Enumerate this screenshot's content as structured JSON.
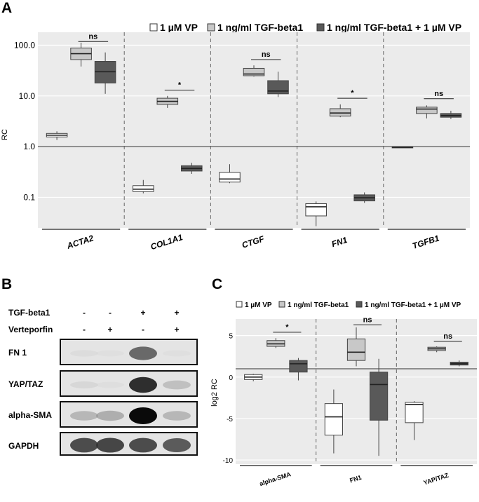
{
  "panel_labels": {
    "a": "A",
    "b": "B",
    "c": "C"
  },
  "colors": {
    "vp": "#ffffff",
    "tgf": "#c8c8c8",
    "combo": "#595959",
    "panel_bg": "#ebebeb",
    "stroke": "#555555"
  },
  "chart_data": [
    {
      "id": "panel_a",
      "type": "box",
      "ylabel": "RC",
      "yscale": "log10",
      "ylim": [
        0.025,
        180
      ],
      "yticks": [
        {
          "value": 0.1,
          "label": "0.1"
        },
        {
          "value": 1,
          "label": "1.0"
        },
        {
          "value": 10,
          "label": "10.0"
        },
        {
          "value": 100,
          "label": "100.0"
        }
      ],
      "reference_line": 1,
      "legend": [
        "1 µM VP",
        "1 ng/ml TGF-beta1",
        "1 ng/ml TGF-beta1 + 1 µM VP"
      ],
      "facets": [
        {
          "label": "ACTA2",
          "boxes": [
            {
              "group": "vp",
              "min": 1.35,
              "q1": 1.55,
              "median": 1.68,
              "q3": 1.82,
              "max": 2.0
            },
            {
              "group": "tgf",
              "min": 38,
              "q1": 52,
              "median": 68,
              "q3": 88,
              "max": 112
            },
            {
              "group": "combo",
              "min": 11,
              "q1": 18,
              "median": 30,
              "q3": 48,
              "max": 72
            }
          ],
          "brackets": [
            {
              "from": 1,
              "to": 2,
              "y": 118,
              "label": "ns"
            }
          ]
        },
        {
          "label": "COL1A1",
          "boxes": [
            {
              "group": "vp",
              "min": 0.12,
              "q1": 0.13,
              "median": 0.145,
              "q3": 0.17,
              "max": 0.22
            },
            {
              "group": "tgf",
              "min": 5.8,
              "q1": 6.8,
              "median": 7.8,
              "q3": 9.0,
              "max": 10.0
            },
            {
              "group": "combo",
              "min": 0.29,
              "q1": 0.33,
              "median": 0.37,
              "q3": 0.42,
              "max": 0.48
            }
          ],
          "brackets": [
            {
              "from": 1,
              "to": 2,
              "y": 13,
              "label": "*"
            }
          ]
        },
        {
          "label": "CTGF",
          "boxes": [
            {
              "group": "vp",
              "min": 0.19,
              "q1": 0.2,
              "median": 0.23,
              "q3": 0.31,
              "max": 0.45
            },
            {
              "group": "tgf",
              "min": 24,
              "q1": 25,
              "median": 27,
              "q3": 35,
              "max": 40
            },
            {
              "group": "combo",
              "min": 9.5,
              "q1": 11,
              "median": 12.5,
              "q3": 20,
              "max": 30
            }
          ],
          "brackets": [
            {
              "from": 1,
              "to": 2,
              "y": 52,
              "label": "ns"
            }
          ]
        },
        {
          "label": "FN1",
          "boxes": [
            {
              "group": "vp",
              "min": 0.027,
              "q1": 0.043,
              "median": 0.065,
              "q3": 0.075,
              "max": 0.083
            },
            {
              "group": "tgf",
              "min": 3.8,
              "q1": 4.0,
              "median": 4.6,
              "q3": 5.6,
              "max": 6.8
            },
            {
              "group": "combo",
              "min": 0.078,
              "q1": 0.085,
              "median": 0.098,
              "q3": 0.112,
              "max": 0.125
            }
          ],
          "brackets": [
            {
              "from": 1,
              "to": 2,
              "y": 9.0,
              "label": "*"
            }
          ]
        },
        {
          "label": "TGFB1",
          "boxes": [
            {
              "group": "vp",
              "min": 0.94,
              "q1": 0.96,
              "median": 0.975,
              "q3": 0.99,
              "max": 1.0
            },
            {
              "group": "tgf",
              "min": 3.6,
              "q1": 4.5,
              "median": 5.5,
              "q3": 6.0,
              "max": 6.5
            },
            {
              "group": "combo",
              "min": 3.5,
              "q1": 3.8,
              "median": 4.1,
              "q3": 4.5,
              "max": 5.1
            }
          ],
          "brackets": [
            {
              "from": 1,
              "to": 2,
              "y": 8.8,
              "label": "ns"
            }
          ]
        }
      ]
    },
    {
      "id": "panel_c",
      "type": "box",
      "ylabel": "log2 RC",
      "yscale": "linear",
      "ylim": [
        -10.5,
        7
      ],
      "yticks": [
        {
          "value": -10,
          "label": "-10"
        },
        {
          "value": -5,
          "label": "-5"
        },
        {
          "value": 0,
          "label": "0"
        },
        {
          "value": 5,
          "label": "5"
        }
      ],
      "reference_line": 1,
      "legend": [
        "1 µM VP",
        "1 ng/ml TGF-beta1",
        "1 ng/ml  TGF-beta1 + 1 µM VP"
      ],
      "facets": [
        {
          "label": "alpha-SMA",
          "boxes": [
            {
              "group": "vp",
              "min": -0.5,
              "q1": -0.3,
              "median": 0.0,
              "q3": 0.3,
              "max": 0.4
            },
            {
              "group": "tgf",
              "min": 3.5,
              "q1": 3.7,
              "median": 4.0,
              "q3": 4.4,
              "max": 4.7
            },
            {
              "group": "combo",
              "min": -0.4,
              "q1": 0.6,
              "median": 1.6,
              "q3": 2.0,
              "max": 2.3
            }
          ],
          "brackets": [
            {
              "from": 1,
              "to": 2,
              "y": 5.4,
              "label": "*"
            }
          ]
        },
        {
          "label": "FN1",
          "boxes": [
            {
              "group": "vp",
              "min": -9.2,
              "q1": -7.0,
              "median": -4.8,
              "q3": -3.2,
              "max": -1.5
            },
            {
              "group": "tgf",
              "min": 1.3,
              "q1": 2.0,
              "median": 3.0,
              "q3": 4.6,
              "max": 6.0
            },
            {
              "group": "combo",
              "min": -9.5,
              "q1": -5.2,
              "median": -0.9,
              "q3": 0.6,
              "max": 2.2
            }
          ],
          "brackets": [
            {
              "from": 1,
              "to": 2,
              "y": 6.3,
              "label": "ns"
            }
          ]
        },
        {
          "label": "YAP/TAZ",
          "boxes": [
            {
              "group": "vp",
              "min": -7.6,
              "q1": -5.5,
              "median": -3.3,
              "q3": -3.05,
              "max": -2.9
            },
            {
              "group": "tgf",
              "min": 3.0,
              "q1": 3.2,
              "median": 3.4,
              "q3": 3.6,
              "max": 3.7
            },
            {
              "group": "combo",
              "min": 1.3,
              "q1": 1.45,
              "median": 1.6,
              "q3": 1.8,
              "max": 2.0
            }
          ],
          "brackets": [
            {
              "from": 1,
              "to": 2,
              "y": 4.3,
              "label": "ns"
            }
          ]
        }
      ]
    }
  ],
  "blot": {
    "treatment_rows": [
      {
        "label": "TGF-beta1",
        "marks": [
          "-",
          "-",
          "+",
          "+"
        ]
      },
      {
        "label": "Verteporfin",
        "marks": [
          "-",
          "+",
          "-",
          "+"
        ]
      }
    ],
    "bands": [
      {
        "label": "FN 1",
        "intensities": [
          0.08,
          0.04,
          0.7,
          0.04
        ]
      },
      {
        "label": "YAP/TAZ",
        "intensities": [
          0.12,
          0.05,
          0.9,
          0.3
        ]
      },
      {
        "label": "alpha-SMA",
        "intensities": [
          0.35,
          0.4,
          1.0,
          0.35
        ]
      },
      {
        "label": "GAPDH",
        "intensities": [
          0.8,
          0.82,
          0.8,
          0.75
        ]
      }
    ]
  }
}
